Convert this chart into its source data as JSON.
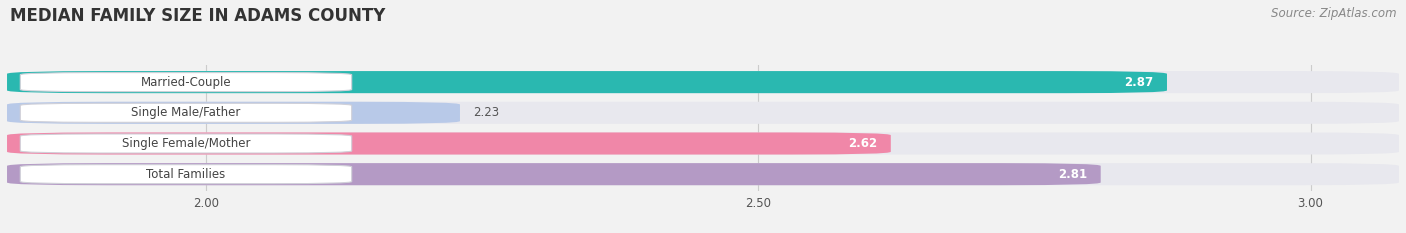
{
  "title": "MEDIAN FAMILY SIZE IN ADAMS COUNTY",
  "source": "Source: ZipAtlas.com",
  "categories": [
    "Married-Couple",
    "Single Male/Father",
    "Single Female/Mother",
    "Total Families"
  ],
  "values": [
    2.87,
    2.23,
    2.62,
    2.81
  ],
  "bar_colors": [
    "#2ab8b0",
    "#b8c9e8",
    "#f087a8",
    "#b49ac5"
  ],
  "track_color": "#e8e8ee",
  "xlim_left": 1.82,
  "xlim_right": 3.08,
  "xticks": [
    2.0,
    2.5,
    3.0
  ],
  "bar_height": 0.72,
  "background_color": "#f2f2f2",
  "label_fontsize": 8.5,
  "value_fontsize": 8.5,
  "title_fontsize": 12,
  "source_fontsize": 8.5,
  "value_colors": [
    "white",
    "#555555",
    "white",
    "white"
  ]
}
